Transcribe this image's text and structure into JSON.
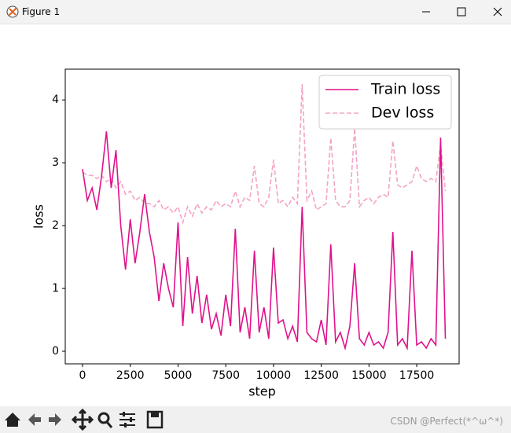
{
  "window": {
    "title": "Figure 1"
  },
  "watermark": "CSDN @Perfect(*^ω^*)",
  "chart_data": {
    "type": "line",
    "x_label": "step",
    "y_label": "loss",
    "x": [
      0,
      250,
      500,
      750,
      1000,
      1250,
      1500,
      1750,
      2000,
      2250,
      2500,
      2750,
      3000,
      3250,
      3500,
      3750,
      4000,
      4250,
      4500,
      4750,
      5000,
      5250,
      5500,
      5750,
      6000,
      6250,
      6500,
      6750,
      7000,
      7250,
      7500,
      7750,
      8000,
      8250,
      8500,
      8750,
      9000,
      9250,
      9500,
      9750,
      10000,
      10250,
      10500,
      10750,
      11000,
      11250,
      11500,
      11750,
      12000,
      12250,
      12500,
      12750,
      13000,
      13250,
      13500,
      13750,
      14000,
      14250,
      14500,
      14750,
      15000,
      15250,
      15500,
      15750,
      16000,
      16250,
      16500,
      16750,
      17000,
      17250,
      17500,
      17750,
      18000,
      18250,
      18500,
      18750,
      19000
    ],
    "series": [
      {
        "name": "Train loss",
        "color": "#e0128b",
        "style": "solid",
        "values": [
          2.9,
          2.4,
          2.6,
          2.25,
          2.8,
          3.5,
          2.6,
          3.2,
          2.0,
          1.3,
          2.1,
          1.4,
          1.9,
          2.5,
          1.9,
          1.5,
          0.8,
          1.4,
          1.0,
          0.7,
          2.05,
          0.4,
          1.5,
          0.6,
          1.2,
          0.45,
          0.9,
          0.35,
          0.6,
          0.25,
          0.9,
          0.4,
          1.95,
          0.3,
          0.7,
          0.2,
          1.6,
          0.3,
          0.7,
          0.2,
          1.65,
          0.45,
          0.5,
          0.2,
          0.4,
          0.15,
          2.3,
          0.3,
          0.2,
          0.15,
          0.5,
          0.1,
          1.7,
          0.15,
          0.3,
          0.05,
          0.4,
          1.4,
          0.2,
          0.1,
          0.3,
          0.1,
          0.15,
          0.05,
          0.3,
          1.9,
          0.1,
          0.2,
          0.05,
          1.6,
          0.1,
          0.15,
          0.05,
          0.2,
          0.1,
          3.4,
          0.2
        ]
      },
      {
        "name": "Dev loss",
        "color": "#f4a3c6",
        "style": "dashed",
        "values": [
          2.85,
          2.8,
          2.8,
          2.75,
          2.8,
          2.7,
          2.75,
          2.6,
          2.7,
          2.5,
          2.55,
          2.4,
          2.45,
          2.35,
          2.35,
          2.3,
          2.4,
          2.25,
          2.3,
          2.2,
          2.3,
          2.05,
          2.3,
          2.15,
          2.35,
          2.2,
          2.3,
          2.25,
          2.4,
          2.3,
          2.35,
          2.3,
          2.55,
          2.3,
          2.45,
          2.4,
          2.95,
          2.35,
          2.3,
          2.45,
          3.05,
          2.35,
          2.4,
          2.3,
          2.45,
          2.35,
          4.25,
          2.4,
          2.55,
          2.25,
          2.3,
          2.35,
          3.4,
          2.4,
          2.3,
          2.3,
          2.4,
          3.55,
          2.3,
          2.4,
          2.45,
          2.35,
          2.45,
          2.5,
          2.45,
          3.35,
          2.65,
          2.6,
          2.65,
          2.7,
          2.95,
          2.75,
          2.7,
          2.75,
          2.7,
          3.3,
          2.55
        ]
      }
    ],
    "xlim": [
      -906,
      19720
    ],
    "ylim": [
      -0.2,
      4.49
    ],
    "xticks": [
      0,
      2500,
      5000,
      7500,
      10000,
      12500,
      15000,
      17500
    ],
    "yticks": [
      0,
      1,
      2,
      3,
      4
    ],
    "legend": "upper right"
  }
}
